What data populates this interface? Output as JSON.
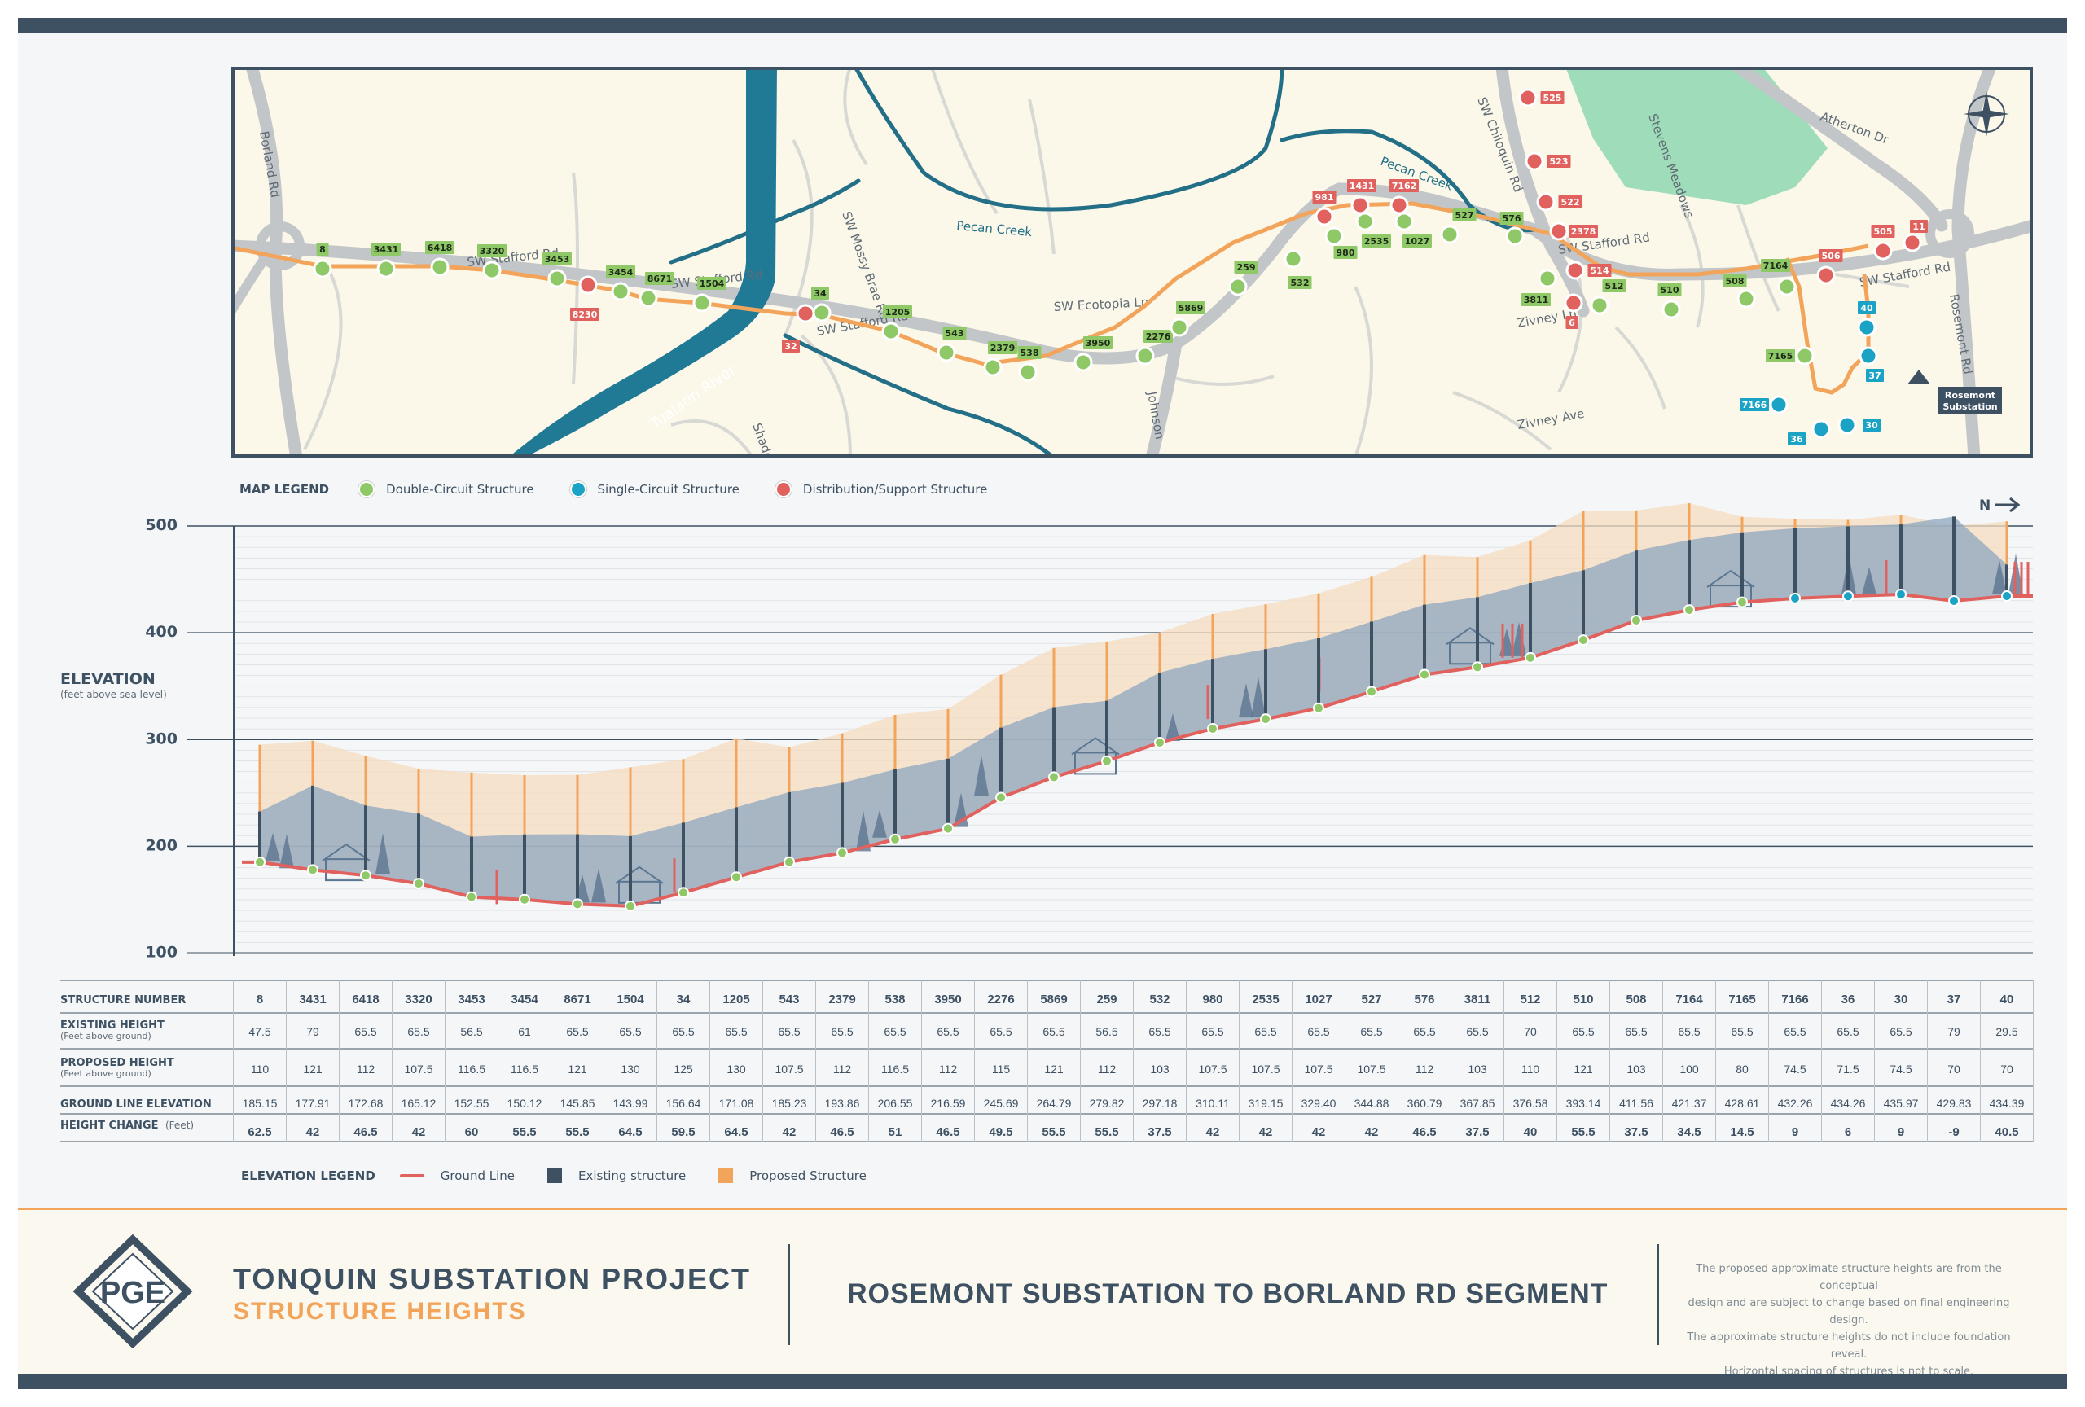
{
  "map": {
    "road_labels": [
      "Borland Rd",
      "SW Stafford Rd",
      "SW Stafford Rd",
      "SW Stafford Rd",
      "SW Stafford Rd",
      "SW Stafford Rd",
      "SW Mossy Brae Rd",
      "SW Ecotopia Ln",
      "SW Chiloquin Rd",
      "Atherton Dr",
      "Rosemont Rd",
      "Johnson",
      "Zivney Ln",
      "Zivney Ave",
      "Shadow"
    ],
    "water_labels": [
      "Tualatin River",
      "Pecan Creek",
      "Pecan Creek"
    ],
    "park_label": "Stevens Meadows",
    "substation_label": [
      "Rosemont",
      "Substation"
    ],
    "markers": [
      {
        "label": "8",
        "type": "double"
      },
      {
        "label": "3431",
        "type": "double"
      },
      {
        "label": "6418",
        "type": "double"
      },
      {
        "label": "3320",
        "type": "double"
      },
      {
        "label": "3453",
        "type": "double"
      },
      {
        "label": "8230",
        "type": "distribution"
      },
      {
        "label": "3454",
        "type": "double"
      },
      {
        "label": "8671",
        "type": "double"
      },
      {
        "label": "1504",
        "type": "double"
      },
      {
        "label": "32",
        "type": "distribution"
      },
      {
        "label": "34",
        "type": "double"
      },
      {
        "label": "1205",
        "type": "double"
      },
      {
        "label": "543",
        "type": "double"
      },
      {
        "label": "2379",
        "type": "double"
      },
      {
        "label": "538",
        "type": "double"
      },
      {
        "label": "3950",
        "type": "double"
      },
      {
        "label": "2276",
        "type": "double"
      },
      {
        "label": "5869",
        "type": "double"
      },
      {
        "label": "259",
        "type": "double"
      },
      {
        "label": "532",
        "type": "double"
      },
      {
        "label": "981",
        "type": "distribution"
      },
      {
        "label": "980",
        "type": "double"
      },
      {
        "label": "1431",
        "type": "distribution"
      },
      {
        "label": "2535",
        "type": "double"
      },
      {
        "label": "7162",
        "type": "distribution"
      },
      {
        "label": "1027",
        "type": "double"
      },
      {
        "label": "527",
        "type": "double"
      },
      {
        "label": "576",
        "type": "double"
      },
      {
        "label": "525",
        "type": "distribution"
      },
      {
        "label": "523",
        "type": "distribution"
      },
      {
        "label": "522",
        "type": "distribution"
      },
      {
        "label": "2378",
        "type": "distribution"
      },
      {
        "label": "514",
        "type": "distribution"
      },
      {
        "label": "3811",
        "type": "double"
      },
      {
        "label": "6",
        "type": "distribution"
      },
      {
        "label": "512",
        "type": "double"
      },
      {
        "label": "510",
        "type": "double"
      },
      {
        "label": "508",
        "type": "double"
      },
      {
        "label": "7164",
        "type": "double"
      },
      {
        "label": "506",
        "type": "distribution"
      },
      {
        "label": "505",
        "type": "distribution"
      },
      {
        "label": "11",
        "type": "distribution"
      },
      {
        "label": "7165",
        "type": "double"
      },
      {
        "label": "40",
        "type": "single"
      },
      {
        "label": "37",
        "type": "single"
      },
      {
        "label": "7166",
        "type": "single"
      },
      {
        "label": "36",
        "type": "single"
      },
      {
        "label": "30",
        "type": "single"
      }
    ]
  },
  "map_legend": {
    "title": "MAP LEGEND",
    "items": [
      {
        "label": "Double-Circuit Structure",
        "color": "#8fc866"
      },
      {
        "label": "Single-Circuit Structure",
        "color": "#1aa3c4"
      },
      {
        "label": "Distribution/Support Structure",
        "color": "#e0615d"
      }
    ]
  },
  "colors": {
    "navy": "#3e5163",
    "orange": "#f3a45b",
    "ground": "#e0615d",
    "green": "#8fc866",
    "blue": "#1aa3c4",
    "red": "#e0615d"
  },
  "chart_data": {
    "type": "area",
    "ylabel": "ELEVATION",
    "ylabel_sub": "(feet above sea level)",
    "ylim": [
      100,
      500
    ],
    "yticks": [
      100,
      200,
      300,
      400,
      500
    ],
    "north_label": "N",
    "structures": [
      "8",
      "3431",
      "6418",
      "3320",
      "3453",
      "3454",
      "8671",
      "1504",
      "34",
      "1205",
      "543",
      "2379",
      "538",
      "3950",
      "2276",
      "5869",
      "259",
      "532",
      "980",
      "2535",
      "1027",
      "527",
      "576",
      "3811",
      "512",
      "510",
      "508",
      "7164",
      "7165",
      "7166",
      "36",
      "30",
      "37",
      "40"
    ],
    "structure_types": [
      "double",
      "double",
      "double",
      "double",
      "double",
      "double",
      "double",
      "double",
      "double",
      "double",
      "double",
      "double",
      "double",
      "double",
      "double",
      "double",
      "double",
      "double",
      "double",
      "double",
      "double",
      "double",
      "double",
      "double",
      "double",
      "double",
      "double",
      "double",
      "double",
      "single",
      "single",
      "single",
      "single",
      "single"
    ],
    "series": [
      {
        "name": "Existing structure",
        "values": [
          47.5,
          79,
          65.5,
          65.5,
          56.5,
          61,
          65.5,
          65.5,
          65.5,
          65.5,
          65.5,
          65.5,
          65.5,
          65.5,
          65.5,
          65.5,
          56.5,
          65.5,
          65.5,
          65.5,
          65.5,
          65.5,
          65.5,
          65.5,
          70,
          65.5,
          65.5,
          65.5,
          65.5,
          65.5,
          65.5,
          65.5,
          79,
          29.5
        ]
      },
      {
        "name": "Proposed Structure",
        "values": [
          110,
          121,
          112,
          107.5,
          116.5,
          116.5,
          121,
          130,
          125,
          130,
          107.5,
          112,
          116.5,
          112,
          115,
          121,
          112,
          103,
          107.5,
          107.5,
          107.5,
          107.5,
          112,
          103,
          110,
          121,
          103,
          100,
          80,
          74.5,
          71.5,
          74.5,
          70,
          70
        ]
      },
      {
        "name": "Ground Line",
        "values": [
          185.15,
          177.91,
          172.68,
          165.12,
          152.55,
          150.12,
          145.85,
          143.99,
          156.64,
          171.08,
          185.23,
          193.86,
          206.55,
          216.59,
          245.69,
          264.79,
          279.82,
          297.18,
          310.11,
          319.15,
          329.4,
          344.88,
          360.79,
          367.85,
          376.58,
          393.14,
          411.56,
          421.37,
          428.61,
          432.26,
          434.26,
          435.97,
          429.83,
          434.39
        ]
      }
    ],
    "legend_title": "ELEVATION LEGEND",
    "legend": [
      {
        "label": "Ground Line",
        "color": "#e0615d"
      },
      {
        "label": "Existing structure",
        "color": "#3e5163"
      },
      {
        "label": "Proposed Structure",
        "color": "#f3a45b"
      }
    ]
  },
  "table": {
    "rows": [
      {
        "label": "STRUCTURE NUMBER",
        "sub": "",
        "values": [
          "8",
          "3431",
          "6418",
          "3320",
          "3453",
          "3454",
          "8671",
          "1504",
          "34",
          "1205",
          "543",
          "2379",
          "538",
          "3950",
          "2276",
          "5869",
          "259",
          "532",
          "980",
          "2535",
          "1027",
          "527",
          "576",
          "3811",
          "512",
          "510",
          "508",
          "7164",
          "7165",
          "7166",
          "36",
          "30",
          "37",
          "40"
        ],
        "bold": true
      },
      {
        "label": "EXISTING HEIGHT",
        "sub": "(Feet above ground)",
        "values": [
          "47.5",
          "79",
          "65.5",
          "65.5",
          "56.5",
          "61",
          "65.5",
          "65.5",
          "65.5",
          "65.5",
          "65.5",
          "65.5",
          "65.5",
          "65.5",
          "65.5",
          "65.5",
          "56.5",
          "65.5",
          "65.5",
          "65.5",
          "65.5",
          "65.5",
          "65.5",
          "65.5",
          "70",
          "65.5",
          "65.5",
          "65.5",
          "65.5",
          "65.5",
          "65.5",
          "65.5",
          "79",
          "29.5"
        ],
        "bold": false
      },
      {
        "label": "PROPOSED HEIGHT",
        "sub": "(Feet above ground)",
        "values": [
          "110",
          "121",
          "112",
          "107.5",
          "116.5",
          "116.5",
          "121",
          "130",
          "125",
          "130",
          "107.5",
          "112",
          "116.5",
          "112",
          "115",
          "121",
          "112",
          "103",
          "107.5",
          "107.5",
          "107.5",
          "107.5",
          "112",
          "103",
          "110",
          "121",
          "103",
          "100",
          "80",
          "74.5",
          "71.5",
          "74.5",
          "70",
          "70"
        ],
        "bold": false
      },
      {
        "label": "GROUND LINE ELEVATION",
        "sub": "",
        "values": [
          "185.15",
          "177.91",
          "172.68",
          "165.12",
          "152.55",
          "150.12",
          "145.85",
          "143.99",
          "156.64",
          "171.08",
          "185.23",
          "193.86",
          "206.55",
          "216.59",
          "245.69",
          "264.79",
          "279.82",
          "297.18",
          "310.11",
          "319.15",
          "329.40",
          "344.88",
          "360.79",
          "367.85",
          "376.58",
          "393.14",
          "411.56",
          "421.37",
          "428.61",
          "432.26",
          "434.26",
          "435.97",
          "429.83",
          "434.39"
        ],
        "bold": false
      },
      {
        "label": "HEIGHT CHANGE",
        "sub": "(Feet)",
        "values": [
          "62.5",
          "42",
          "46.5",
          "42",
          "60",
          "55.5",
          "55.5",
          "64.5",
          "59.5",
          "64.5",
          "42",
          "46.5",
          "51",
          "46.5",
          "49.5",
          "55.5",
          "55.5",
          "37.5",
          "42",
          "42",
          "42",
          "42",
          "46.5",
          "37.5",
          "40",
          "55.5",
          "37.5",
          "34.5",
          "14.5",
          "9",
          "6",
          "9",
          "-9",
          "40.5"
        ],
        "bold": true
      }
    ]
  },
  "footer": {
    "logo_text": "PGE",
    "project_title": "TONQUIN SUBSTATION PROJECT",
    "project_subtitle": "STRUCTURE HEIGHTS",
    "segment_title": "ROSEMONT SUBSTATION TO BORLAND RD SEGMENT",
    "disclaimer": [
      "The proposed approximate structure heights are from the conceptual",
      "design and are subject to change based on final engineering design.",
      "The approximate structure heights do not include foundation reveal.",
      "Horizontal spacing of structures is not to scale."
    ]
  }
}
